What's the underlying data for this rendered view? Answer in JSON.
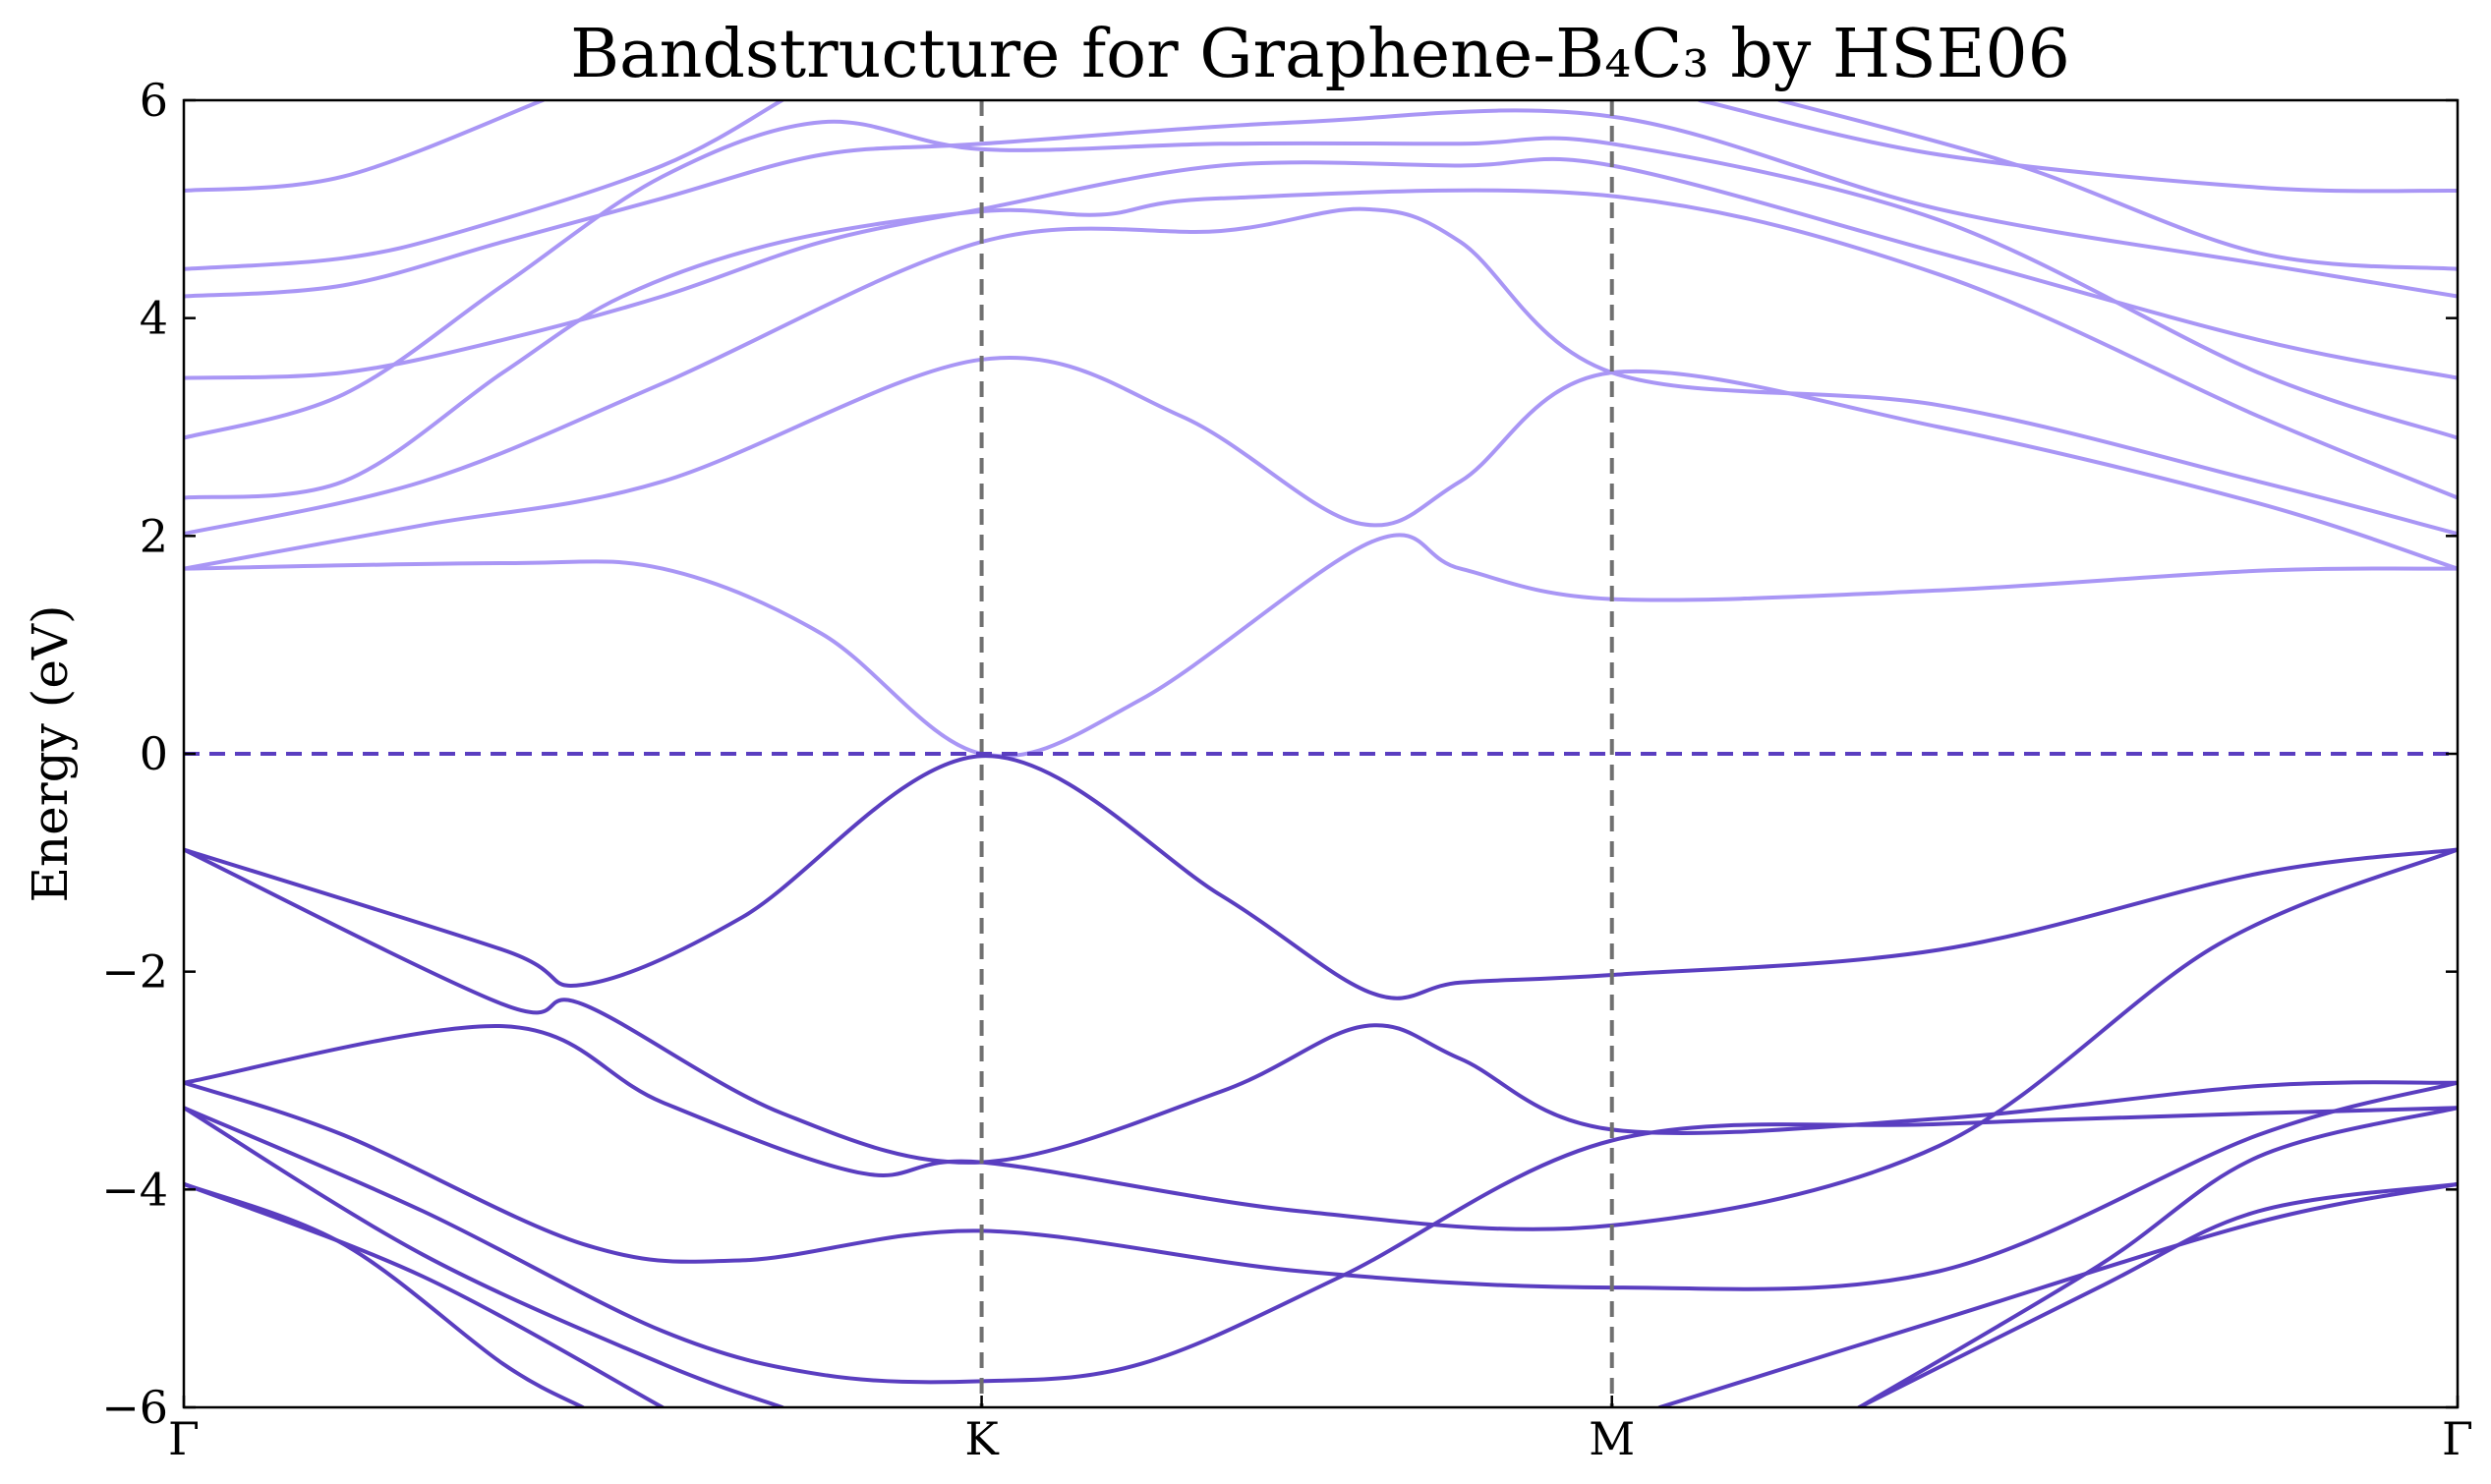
{
  "chart_data": {
    "type": "line",
    "title": "Bandstructure for Graphene-B₄C₃ by HSE06",
    "xlabel": "",
    "ylabel": "Energy (eV)",
    "ylim": [
      -6,
      6
    ],
    "yticks": [
      -6,
      -4,
      -2,
      0,
      2,
      4,
      6
    ],
    "ytick_labels": [
      "−6",
      "−4",
      "−2",
      "0",
      "2",
      "4",
      "6"
    ],
    "kpath": [
      {
        "label": "Γ",
        "x": 0
      },
      {
        "label": "K",
        "x": 1
      },
      {
        "label": "M",
        "x": 1.79
      },
      {
        "label": "Γ",
        "x": 2.85
      }
    ],
    "xlim": [
      0,
      2.85
    ],
    "fermi_level": 0,
    "grid": false,
    "colors": {
      "conduction": "#a996f5",
      "valence": "#5a3ec0",
      "fermi": "#5a3ec0",
      "kline": "#707070"
    },
    "series": [
      {
        "band": "conduction",
        "points": [
          [
            0,
            1.7
          ],
          [
            0.4,
            1.75
          ],
          [
            0.6,
            1.7
          ],
          [
            0.8,
            1.1
          ],
          [
            1,
            0
          ],
          [
            1.2,
            0.5
          ],
          [
            1.49,
            1.95
          ],
          [
            1.6,
            1.7
          ],
          [
            1.79,
            1.42
          ],
          [
            2.2,
            1.5
          ],
          [
            2.6,
            1.68
          ],
          [
            2.85,
            1.7
          ]
        ]
      },
      {
        "band": "conduction",
        "points": [
          [
            0,
            1.7
          ],
          [
            0.3,
            2.1
          ],
          [
            0.6,
            2.5
          ],
          [
            1,
            3.62
          ],
          [
            1.25,
            3.1
          ],
          [
            1.47,
            2.12
          ],
          [
            1.6,
            2.5
          ],
          [
            1.79,
            3.5
          ],
          [
            2.2,
            3.0
          ],
          [
            2.6,
            2.3
          ],
          [
            2.85,
            1.7
          ]
        ]
      },
      {
        "band": "conduction",
        "points": [
          [
            0,
            2.02
          ],
          [
            0.3,
            2.5
          ],
          [
            0.6,
            3.4
          ],
          [
            1,
            4.7
          ],
          [
            1.3,
            4.8
          ],
          [
            1.48,
            5.0
          ],
          [
            1.6,
            4.7
          ],
          [
            1.79,
            3.5
          ],
          [
            2.2,
            3.2
          ],
          [
            2.6,
            2.5
          ],
          [
            2.85,
            2.02
          ]
        ]
      },
      {
        "band": "conduction",
        "points": [
          [
            0,
            2.35
          ],
          [
            0.2,
            2.5
          ],
          [
            0.4,
            3.5
          ],
          [
            0.55,
            4.2
          ],
          [
            0.75,
            4.7
          ],
          [
            1,
            4.98
          ],
          [
            1.15,
            4.95
          ],
          [
            1.3,
            5.1
          ],
          [
            1.79,
            5.12
          ],
          [
            2.2,
            4.4
          ],
          [
            2.6,
            3.1
          ],
          [
            2.85,
            2.35
          ]
        ]
      },
      {
        "band": "conduction",
        "points": [
          [
            0,
            2.9
          ],
          [
            0.2,
            3.3
          ],
          [
            0.4,
            4.3
          ],
          [
            0.6,
            5.3
          ],
          [
            0.8,
            5.8
          ],
          [
            1,
            5.55
          ],
          [
            1.3,
            5.6
          ],
          [
            1.6,
            5.6
          ],
          [
            1.79,
            5.6
          ],
          [
            2.2,
            4.9
          ],
          [
            2.6,
            3.5
          ],
          [
            2.85,
            2.9
          ]
        ]
      },
      {
        "band": "conduction",
        "points": [
          [
            0,
            3.45
          ],
          [
            0.2,
            3.5
          ],
          [
            0.4,
            3.8
          ],
          [
            0.6,
            4.2
          ],
          [
            0.8,
            4.7
          ],
          [
            1,
            5.0
          ],
          [
            1.3,
            5.4
          ],
          [
            1.6,
            5.4
          ],
          [
            1.79,
            5.4
          ],
          [
            2.2,
            4.6
          ],
          [
            2.6,
            3.8
          ],
          [
            2.85,
            3.45
          ]
        ]
      },
      {
        "band": "conduction",
        "points": [
          [
            0,
            4.2
          ],
          [
            0.2,
            4.3
          ],
          [
            0.4,
            4.7
          ],
          [
            0.6,
            5.1
          ],
          [
            0.8,
            5.5
          ],
          [
            1,
            5.6
          ],
          [
            1.4,
            5.8
          ],
          [
            1.79,
            5.85
          ],
          [
            2.2,
            5.0
          ],
          [
            2.6,
            4.5
          ],
          [
            2.85,
            4.2
          ]
        ]
      },
      {
        "band": "conduction",
        "points": [
          [
            0,
            4.45
          ],
          [
            0.2,
            4.55
          ],
          [
            0.35,
            4.8
          ],
          [
            0.6,
            5.4
          ],
          [
            0.75,
            6.0
          ]
        ]
      },
      {
        "band": "conduction",
        "points": [
          [
            0,
            5.17
          ],
          [
            0.2,
            5.3
          ],
          [
            0.45,
            6.0
          ]
        ]
      },
      {
        "band": "conduction",
        "points": [
          [
            1.9,
            6.0
          ],
          [
            2.2,
            5.5
          ],
          [
            2.6,
            5.2
          ],
          [
            2.85,
            5.17
          ]
        ]
      },
      {
        "band": "conduction",
        "points": [
          [
            2.0,
            6.0
          ],
          [
            2.3,
            5.4
          ],
          [
            2.6,
            4.6
          ],
          [
            2.85,
            4.45
          ]
        ]
      },
      {
        "band": "valence",
        "points": [
          [
            0,
            -0.88
          ],
          [
            0.4,
            -1.8
          ],
          [
            0.5,
            -2.12
          ],
          [
            0.7,
            -1.5
          ],
          [
            1,
            -0.02
          ],
          [
            1.3,
            -1.3
          ],
          [
            1.49,
            -2.2
          ],
          [
            1.6,
            -2.1
          ],
          [
            1.79,
            -2.03
          ],
          [
            2.2,
            -1.8
          ],
          [
            2.6,
            -1.1
          ],
          [
            2.85,
            -0.88
          ]
        ]
      },
      {
        "band": "valence",
        "points": [
          [
            0,
            -0.88
          ],
          [
            0.4,
            -2.3
          ],
          [
            0.5,
            -2.3
          ],
          [
            0.75,
            -3.3
          ],
          [
            1,
            -3.75
          ],
          [
            1.3,
            -3.1
          ],
          [
            1.48,
            -2.5
          ],
          [
            1.6,
            -2.8
          ],
          [
            1.79,
            -3.45
          ],
          [
            2.2,
            -3.35
          ],
          [
            2.6,
            -3.05
          ],
          [
            2.85,
            -3.02
          ]
        ]
      },
      {
        "band": "valence",
        "points": [
          [
            0,
            -3.02
          ],
          [
            0.4,
            -2.5
          ],
          [
            0.6,
            -3.2
          ],
          [
            0.85,
            -3.85
          ],
          [
            1,
            -3.75
          ],
          [
            1.4,
            -4.2
          ],
          [
            1.79,
            -4.33
          ],
          [
            2.2,
            -3.6
          ],
          [
            2.55,
            -1.75
          ],
          [
            2.85,
            -0.88
          ]
        ]
      },
      {
        "band": "valence",
        "points": [
          [
            0,
            -3.02
          ],
          [
            0.2,
            -3.5
          ],
          [
            0.5,
            -4.5
          ],
          [
            0.7,
            -4.65
          ],
          [
            1,
            -4.38
          ],
          [
            1.4,
            -4.75
          ],
          [
            1.79,
            -4.9
          ],
          [
            2.2,
            -4.75
          ],
          [
            2.6,
            -3.5
          ],
          [
            2.85,
            -3.02
          ]
        ]
      },
      {
        "band": "valence",
        "points": [
          [
            0,
            -3.25
          ],
          [
            0.3,
            -4.2
          ],
          [
            0.6,
            -5.3
          ],
          [
            0.8,
            -5.7
          ],
          [
            1,
            -5.76
          ],
          [
            1.2,
            -5.6
          ],
          [
            1.45,
            -4.8
          ],
          [
            1.79,
            -3.55
          ],
          [
            2.2,
            -3.4
          ],
          [
            2.6,
            -3.3
          ],
          [
            2.85,
            -3.25
          ]
        ]
      },
      {
        "band": "valence",
        "points": [
          [
            0,
            -3.25
          ],
          [
            0.3,
            -4.6
          ],
          [
            0.6,
            -5.6
          ],
          [
            0.75,
            -6.0
          ]
        ]
      },
      {
        "band": "valence",
        "points": [
          [
            0,
            -3.95
          ],
          [
            0.3,
            -4.8
          ],
          [
            0.6,
            -6.0
          ]
        ]
      },
      {
        "band": "valence",
        "points": [
          [
            0,
            -3.95
          ],
          [
            0.2,
            -4.5
          ],
          [
            0.4,
            -5.6
          ],
          [
            0.5,
            -6.0
          ]
        ]
      },
      {
        "band": "valence",
        "points": [
          [
            1.85,
            -6.0
          ],
          [
            2.2,
            -5.2
          ],
          [
            2.6,
            -4.3
          ],
          [
            2.85,
            -3.95
          ]
        ]
      },
      {
        "band": "valence",
        "points": [
          [
            2.1,
            -6.0
          ],
          [
            2.4,
            -4.9
          ],
          [
            2.6,
            -4.2
          ],
          [
            2.85,
            -3.95
          ]
        ]
      },
      {
        "band": "valence",
        "points": [
          [
            2.1,
            -6.0
          ],
          [
            2.4,
            -4.7
          ],
          [
            2.6,
            -3.7
          ],
          [
            2.85,
            -3.25
          ]
        ]
      }
    ]
  }
}
